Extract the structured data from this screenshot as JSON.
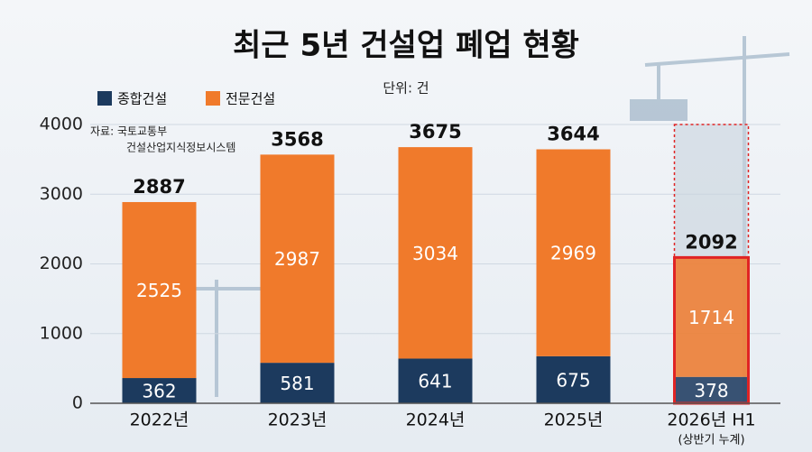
{
  "chart_data": {
    "type": "stacked_bar",
    "title": "최근 5년 건설업 폐업 현황",
    "unit": "단위: 건",
    "source": [
      "자료: 국토교통부",
      "건설산업지식정보시스템"
    ],
    "categories": [
      "2022년",
      "2023년",
      "2024년",
      "2025년",
      "2026년 H1"
    ],
    "category_notes": [
      null,
      null,
      null,
      null,
      "(상반기 누계)"
    ],
    "series": [
      {
        "name": "종합건설",
        "color": "#1c3a5e",
        "values": [
          362,
          581,
          641,
          675,
          378
        ]
      },
      {
        "name": "전문건설",
        "color": "#f07a2b",
        "values": [
          2525,
          2987,
          3034,
          2969,
          1714
        ]
      }
    ],
    "totals": [
      2887,
      3568,
      3675,
      3644,
      2092
    ],
    "ylim": [
      0,
      4000
    ],
    "yticks": [
      0,
      1000,
      2000,
      3000,
      4000
    ],
    "grid": true,
    "highlight_index": 4,
    "highlight_color": "#e02424"
  }
}
